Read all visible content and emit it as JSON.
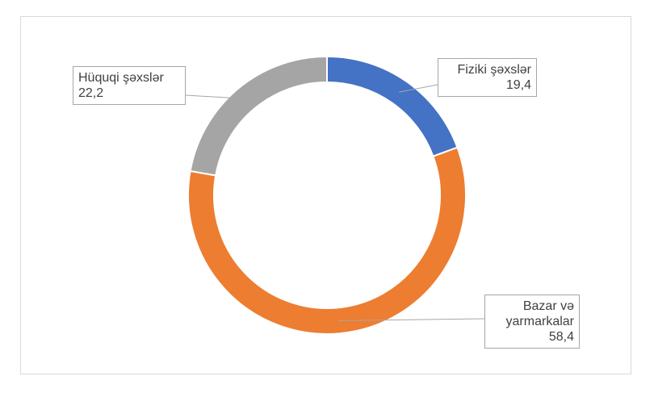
{
  "chart_data": {
    "type": "donut",
    "categories": [
      "Fiziki şəxslər",
      "Bazar və yarmarkalar",
      "Hüquqi şəxslər"
    ],
    "values": [
      19.4,
      58.4,
      22.2
    ],
    "value_labels": [
      "19,4",
      "58,4",
      "22,2"
    ],
    "colors": [
      "#4472c4",
      "#ed7d31",
      "#a5a5a5"
    ]
  }
}
